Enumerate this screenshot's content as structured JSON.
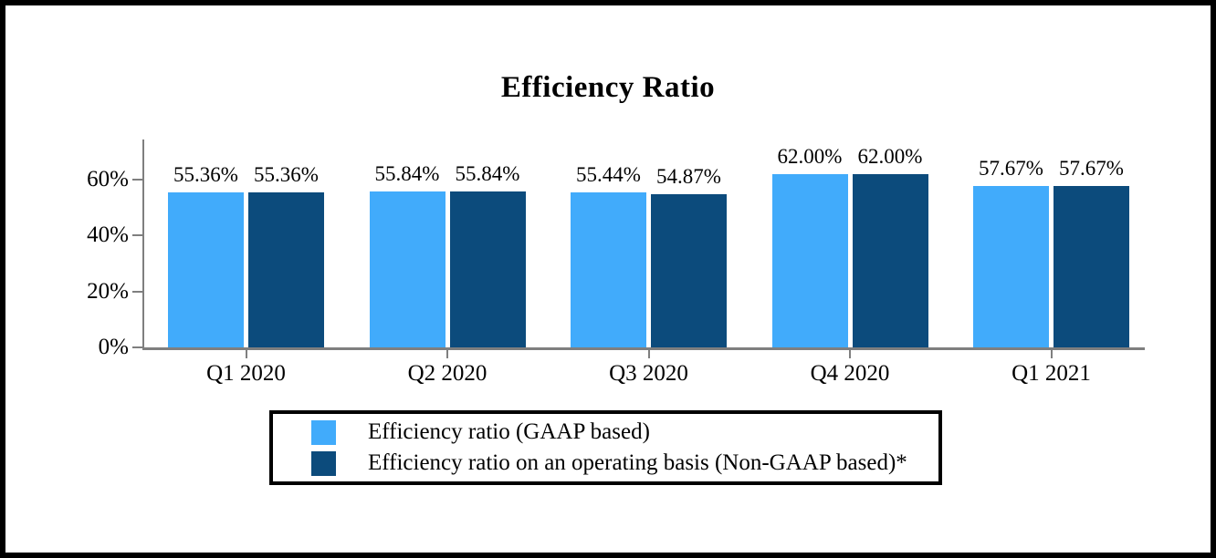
{
  "chart_data": {
    "type": "bar",
    "title": "Efficiency Ratio",
    "categories": [
      "Q1 2020",
      "Q2 2020",
      "Q3 2020",
      "Q4 2020",
      "Q1 2021"
    ],
    "series": [
      {
        "name": "Efficiency ratio (GAAP based)",
        "color": "#41ABFB",
        "values": [
          55.36,
          55.84,
          55.44,
          62.0,
          57.67
        ],
        "labels": [
          "55.36%",
          "55.84%",
          "55.44%",
          "62.00%",
          "57.67%"
        ]
      },
      {
        "name": "Efficiency ratio on an operating basis (Non-GAAP based)*",
        "color": "#0C4B7C",
        "values": [
          55.36,
          55.84,
          54.87,
          62.0,
          57.67
        ],
        "labels": [
          "55.36%",
          "55.84%",
          "54.87%",
          "62.00%",
          "57.67%"
        ]
      }
    ],
    "y_axis": {
      "ticks": [
        "0%",
        "20%",
        "40%",
        "60%"
      ],
      "tick_values": [
        0,
        20,
        40,
        60
      ],
      "max": 74.35
    },
    "axis_color": "#7F7F7F",
    "grid": false,
    "legend_position": "bottom"
  }
}
